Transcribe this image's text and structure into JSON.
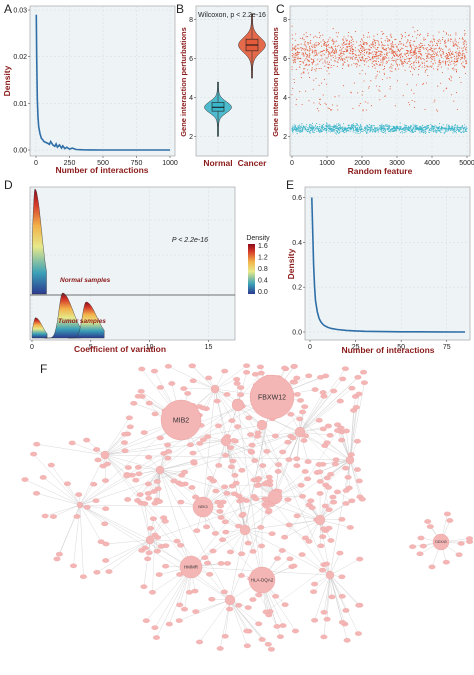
{
  "panel_letters": {
    "a": "A",
    "b": "B",
    "c": "C",
    "d": "D",
    "e": "E",
    "f": "F"
  },
  "colors": {
    "line": "#2f6fa8",
    "normal": "#3bb5c9",
    "cancer": "#e35b3a",
    "node": "#f4b5b5",
    "edge": "#bdbdbd",
    "axis_title": "#8b1a1a"
  },
  "chart_data": [
    {
      "panel": "A",
      "type": "line",
      "xlabel": "Number of interactions",
      "ylabel": "Density",
      "xlim": [
        0,
        1000
      ],
      "ylim": [
        0,
        0.03
      ],
      "xticks": [
        "0",
        "250",
        "500",
        "750",
        "1000"
      ],
      "yticks": [
        "0.00",
        "0.01",
        "0.02",
        "0.03"
      ],
      "x": [
        2,
        5,
        10,
        15,
        20,
        30,
        40,
        50,
        60,
        75,
        90,
        100,
        110,
        125,
        140,
        150,
        160,
        175,
        190,
        200,
        215,
        230,
        250,
        270,
        300,
        350,
        400,
        500,
        600,
        700,
        800,
        900,
        1000
      ],
      "y": [
        0.029,
        0.02,
        0.011,
        0.007,
        0.005,
        0.0035,
        0.0025,
        0.0022,
        0.0018,
        0.0016,
        0.0014,
        0.0012,
        0.0018,
        0.0011,
        0.0008,
        0.0013,
        0.0006,
        0.0011,
        0.0004,
        0.0009,
        0.0003,
        0.0006,
        0.0002,
        0.0004,
        0.0001,
        5e-05,
        2e-05,
        0,
        0,
        0,
        0,
        0,
        0
      ]
    },
    {
      "panel": "B",
      "type": "violin",
      "ylabel": "Gene interaction perturbations",
      "categories": [
        "Normal",
        "Cancer"
      ],
      "annotation": "Wilcoxon, p < 2.2e-16",
      "ylim": [
        1.2,
        8.5
      ],
      "yticks": [
        "2",
        "4",
        "6",
        "8"
      ],
      "series": [
        {
          "category": "Normal",
          "median": 3.5,
          "q1": 3.3,
          "q3": 3.75,
          "min": 2.0,
          "max": 4.8
        },
        {
          "category": "Cancer",
          "median": 6.7,
          "q1": 6.4,
          "q3": 7.0,
          "min": 5.0,
          "max": 8.3
        }
      ]
    },
    {
      "panel": "C",
      "type": "scatter",
      "xlabel": "Random feature",
      "ylabel": "Gene interaction perturbations",
      "xlim": [
        0,
        5000
      ],
      "ylim": [
        1.2,
        8.5
      ],
      "xticks": [
        "0",
        "1000",
        "2000",
        "3000",
        "4000",
        "5000"
      ],
      "yticks": [
        "2",
        "4",
        "6",
        "8"
      ],
      "series": [
        {
          "name": "Cancer",
          "center": 6.3,
          "spread": 0.9
        },
        {
          "name": "Normal",
          "center": 2.4,
          "spread": 0.2
        }
      ]
    },
    {
      "panel": "D",
      "type": "density",
      "xlabel": "Coefficient of variation",
      "xlim": [
        0,
        17
      ],
      "xticks": [
        "0",
        "5",
        "10",
        "15"
      ],
      "annotation": "P < 2.2e-16",
      "labels": [
        "Normal samples",
        "Tumor samples"
      ],
      "legend": {
        "title": "Density",
        "ticks": [
          "1.6",
          "1.2",
          "0.8",
          "0.4",
          "0.0"
        ]
      },
      "series": [
        {
          "name": "Normal samples",
          "peaks": [
            [
              0.25,
              1.0
            ]
          ]
        },
        {
          "name": "Tumor samples",
          "peaks": [
            [
              0.3,
              0.45
            ],
            [
              2.6,
              1.0
            ],
            [
              4.6,
              0.8
            ]
          ]
        }
      ]
    },
    {
      "panel": "E",
      "type": "line",
      "xlabel": "Number of interactions",
      "ylabel": "Density",
      "xlim": [
        0,
        85
      ],
      "ylim": [
        0,
        0.62
      ],
      "xticks": [
        "0",
        "25",
        "50",
        "75"
      ],
      "yticks": [
        "0.0",
        "0.2",
        "0.4",
        "0.6"
      ],
      "x": [
        1,
        1.5,
        2,
        2.5,
        3,
        4,
        5,
        6,
        7,
        8,
        10,
        12,
        15,
        20,
        25,
        30,
        40,
        50,
        60,
        70,
        85
      ],
      "y": [
        0.6,
        0.45,
        0.3,
        0.2,
        0.14,
        0.09,
        0.06,
        0.045,
        0.035,
        0.028,
        0.02,
        0.015,
        0.011,
        0.007,
        0.005,
        0.003,
        0.002,
        0.001,
        0.0007,
        0.0004,
        0.0002
      ]
    }
  ],
  "network": {
    "hubs": [
      {
        "label": "FBXW12",
        "size": "large"
      },
      {
        "label": "MIB2",
        "size": "large"
      },
      {
        "label": "NEK3",
        "size": "medium"
      },
      {
        "label": "HMMR",
        "size": "medium"
      },
      {
        "label": "HLA-DQA2",
        "size": "medium"
      },
      {
        "label": "DDX43",
        "size": "small"
      }
    ]
  }
}
